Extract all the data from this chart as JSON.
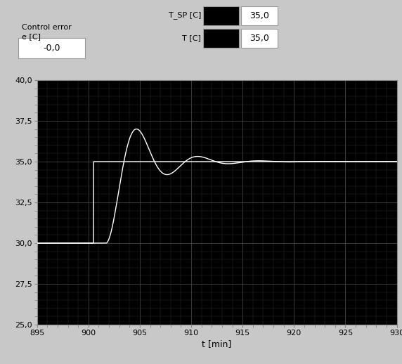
{
  "xlabel": "t [min]",
  "xlim": [
    895,
    930
  ],
  "ylim": [
    25.0,
    40.0
  ],
  "yticks": [
    25.0,
    27.5,
    30.0,
    32.5,
    35.0,
    37.5,
    40.0
  ],
  "xticks": [
    895,
    900,
    905,
    910,
    915,
    920,
    925,
    930
  ],
  "plot_bg": "#000000",
  "fig_bg": "#c8c8c8",
  "grid_color": "#3a3a3a",
  "line_color": "#ffffff",
  "sp_color": "#ffffff",
  "header_label_control_line1": "Control error",
  "header_label_control_line2": "e [C]",
  "header_value_control": "-0,0",
  "header_label_tsp": "T_SP [C]",
  "header_value_tsp": "35,0",
  "header_label_t": "T [C]",
  "header_value_t": "35,0",
  "sp_step_time": 900.5,
  "sp_before": 30.0,
  "sp_after": 35.0,
  "response_params": {
    "t_start": 900.5,
    "zeta": 0.28,
    "omega_n": 1.1,
    "t_delay": 1.2,
    "steady_state": 35.0,
    "initial": 30.0
  }
}
